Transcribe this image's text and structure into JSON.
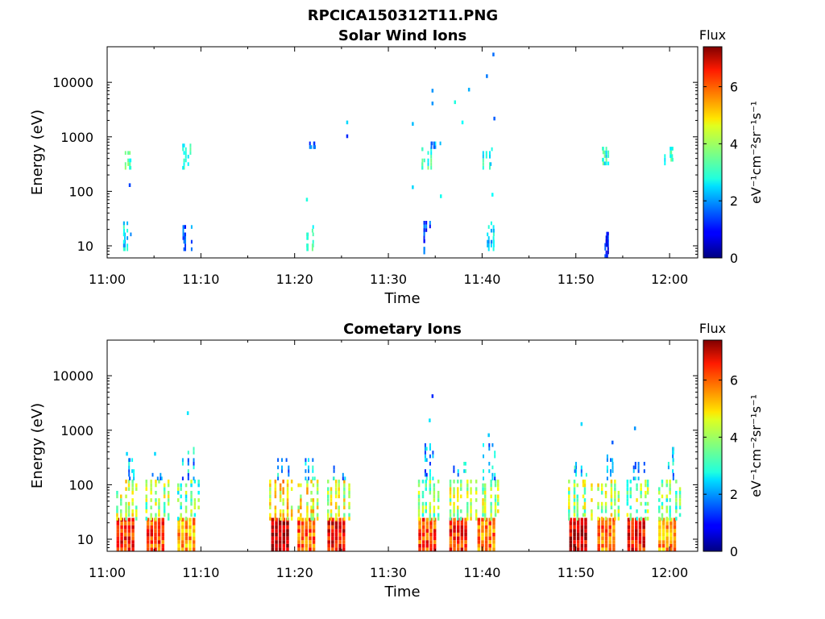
{
  "figure_title": "RPCICA150312T11.PNG",
  "colors": {
    "background": "#ffffff",
    "axis": "#000000",
    "colormap": "jet"
  },
  "chart_data": [
    {
      "type": "heatmap",
      "title": "Solar Wind Ions",
      "xlabel": "Time",
      "ylabel": "Energy (eV)",
      "xlim": [
        "11:00",
        "12:03"
      ],
      "ylim": [
        6,
        45000
      ],
      "yscale": "log",
      "xticks": [
        "11:00",
        "11:10",
        "11:20",
        "11:30",
        "11:40",
        "11:50",
        "12:00"
      ],
      "yticks": [
        "10",
        "100",
        "1000",
        "10000"
      ],
      "colorbar": {
        "label": "Flux",
        "units": "eV⁻¹cm⁻²sr⁻¹s⁻¹",
        "range": [
          0,
          7.4
        ],
        "ticks": [
          "0",
          "2",
          "4",
          "6"
        ]
      },
      "grid": false,
      "clusters": [
        {
          "t": "11:02",
          "e": [
            250,
            500
          ],
          "flux": 3.2
        },
        {
          "t": "11:02",
          "e": [
            8,
            25
          ],
          "flux": 2.6
        },
        {
          "t": "11:08.5",
          "e": [
            250,
            650
          ],
          "flux": 2.8
        },
        {
          "t": "11:08.5",
          "e": [
            8,
            22
          ],
          "flux": 1.6
        },
        {
          "t": "11:21.5",
          "e": [
            8,
            22
          ],
          "flux": 3.0
        },
        {
          "t": "11:22",
          "e": [
            600,
            750
          ],
          "flux": 1.5
        },
        {
          "t": "11:34",
          "e": [
            250,
            550
          ],
          "flux": 3.2
        },
        {
          "t": "11:34.2",
          "e": [
            7,
            25
          ],
          "flux": 1.4
        },
        {
          "t": "11:35",
          "e": [
            600,
            800
          ],
          "flux": 2.0
        },
        {
          "t": "11:40.5",
          "e": [
            250,
            550
          ],
          "flux": 3.0
        },
        {
          "t": "11:40.8",
          "e": [
            8,
            25
          ],
          "flux": 2.5
        },
        {
          "t": "11:53",
          "e": [
            300,
            600
          ],
          "flux": 3.0
        },
        {
          "t": "11:53.5",
          "e": [
            6,
            16
          ],
          "flux": 1.0
        },
        {
          "t": "11:59.8",
          "e": [
            300,
            600
          ],
          "flux": 3.1
        }
      ],
      "scatter": [
        {
          "t": "11:25.5",
          "e": 1700,
          "flux": 2.5
        },
        {
          "t": "11:25.5",
          "e": 950,
          "flux": 1.2
        },
        {
          "t": "11:32.5",
          "e": 1600,
          "flux": 2.3
        },
        {
          "t": "11:34.6",
          "e": 6500,
          "flux": 2.0
        },
        {
          "t": "11:34.6",
          "e": 3800,
          "flux": 2.0
        },
        {
          "t": "11:37",
          "e": 4000,
          "flux": 3.0
        },
        {
          "t": "11:38.5",
          "e": 6800,
          "flux": 2.2
        },
        {
          "t": "11:40.4",
          "e": 12000,
          "flux": 1.8
        },
        {
          "t": "11:41.1",
          "e": 30000,
          "flux": 1.7
        },
        {
          "t": "11:41.2",
          "e": 2000,
          "flux": 1.6
        },
        {
          "t": "11:37.8",
          "e": 1700,
          "flux": 2.8
        },
        {
          "t": "11:21.2",
          "e": 65,
          "flux": 3.0
        },
        {
          "t": "11:32.5",
          "e": 110,
          "flux": 2.5
        },
        {
          "t": "11:35.5",
          "e": 75,
          "flux": 2.9
        },
        {
          "t": "11:41",
          "e": 80,
          "flux": 2.8
        },
        {
          "t": "11:02.3",
          "e": 120,
          "flux": 1.4
        }
      ]
    },
    {
      "type": "heatmap",
      "title": "Cometary Ions",
      "xlabel": "Time",
      "ylabel": "Energy (eV)",
      "xlim": [
        "11:00",
        "12:03"
      ],
      "ylim": [
        6,
        45000
      ],
      "yscale": "log",
      "xticks": [
        "11:00",
        "11:10",
        "11:20",
        "11:30",
        "11:40",
        "11:50",
        "12:00"
      ],
      "yticks": [
        "10",
        "100",
        "1000",
        "10000"
      ],
      "colorbar": {
        "label": "Flux",
        "units": "eV⁻¹cm⁻²sr⁻¹s⁻¹",
        "range": [
          0,
          7.4
        ],
        "ticks": [
          "0",
          "2",
          "4",
          "6"
        ]
      },
      "grid": false,
      "clusters": [
        {
          "t": "11:02",
          "low": 6.3,
          "mid": 4.2,
          "top": 300
        },
        {
          "t": "11:05.2",
          "low": 6.0,
          "mid": 4.0,
          "top": 150
        },
        {
          "t": "11:08.5",
          "low": 5.2,
          "mid": 3.5,
          "top": 450
        },
        {
          "t": "11:18.5",
          "low": 7.0,
          "mid": 4.8,
          "top": 300
        },
        {
          "t": "11:21.3",
          "low": 5.8,
          "mid": 4.5,
          "top": 300
        },
        {
          "t": "11:24.5",
          "low": 6.5,
          "mid": 4.3,
          "top": 250
        },
        {
          "t": "11:34.2",
          "low": 6.0,
          "mid": 3.8,
          "top": 500
        },
        {
          "t": "11:37.5",
          "low": 6.2,
          "mid": 4.2,
          "top": 250
        },
        {
          "t": "11:40.5",
          "low": 5.5,
          "mid": 4.0,
          "top": 500
        },
        {
          "t": "11:50.3",
          "low": 6.8,
          "mid": 4.0,
          "top": 250
        },
        {
          "t": "11:53.3",
          "low": 5.6,
          "mid": 4.2,
          "top": 350
        },
        {
          "t": "11:56.5",
          "low": 6.4,
          "mid": 3.8,
          "top": 250
        },
        {
          "t": "11:59.8",
          "low": 5.3,
          "mid": 3.5,
          "top": 450
        }
      ],
      "scatter": [
        {
          "t": "11:08.5",
          "e": 1900,
          "flux": 2.6
        },
        {
          "t": "11:34.6",
          "e": 3900,
          "flux": 1.2
        },
        {
          "t": "11:34.3",
          "e": 1400,
          "flux": 2.6
        },
        {
          "t": "11:40.6",
          "e": 750,
          "flux": 2.4
        },
        {
          "t": "11:50.5",
          "e": 1200,
          "flux": 2.5
        },
        {
          "t": "11:53.8",
          "e": 550,
          "flux": 1.6
        },
        {
          "t": "11:56.2",
          "e": 1000,
          "flux": 2.0
        },
        {
          "t": "11:02",
          "e": 340,
          "flux": 2.5
        },
        {
          "t": "11:05",
          "e": 340,
          "flux": 2.5
        }
      ]
    }
  ]
}
